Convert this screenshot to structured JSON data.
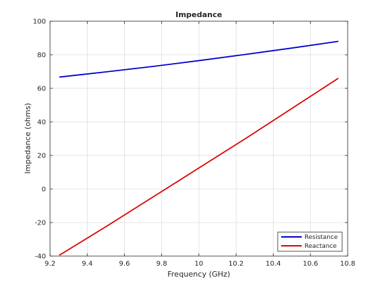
{
  "chart_data": {
    "type": "line",
    "title": "Impedance",
    "xlabel": "Frequency (GHz)",
    "ylabel": "Impedance (ohms)",
    "xlim": [
      9.2,
      10.8
    ],
    "ylim": [
      -40,
      100
    ],
    "xticks": [
      "9.2",
      "9.4",
      "9.6",
      "9.8",
      "10",
      "10.2",
      "10.4",
      "10.6",
      "10.8"
    ],
    "yticks": [
      "-40",
      "-20",
      "0",
      "20",
      "40",
      "60",
      "80",
      "100"
    ],
    "grid": true,
    "legend_position": "bottom-right",
    "series": [
      {
        "name": "Resistance",
        "color": "#0000cc",
        "x": [
          9.25,
          9.5,
          9.75,
          10.0,
          10.25,
          10.5,
          10.75
        ],
        "y": [
          66.7,
          69.8,
          73.0,
          76.5,
          80.2,
          84.0,
          88.0
        ]
      },
      {
        "name": "Reactance",
        "color": "#dd0000",
        "x": [
          9.25,
          9.5,
          9.75,
          10.0,
          10.25,
          10.5,
          10.75
        ],
        "y": [
          -39.5,
          -22.5,
          -5.0,
          12.5,
          30.0,
          48.0,
          66.0
        ]
      }
    ]
  }
}
